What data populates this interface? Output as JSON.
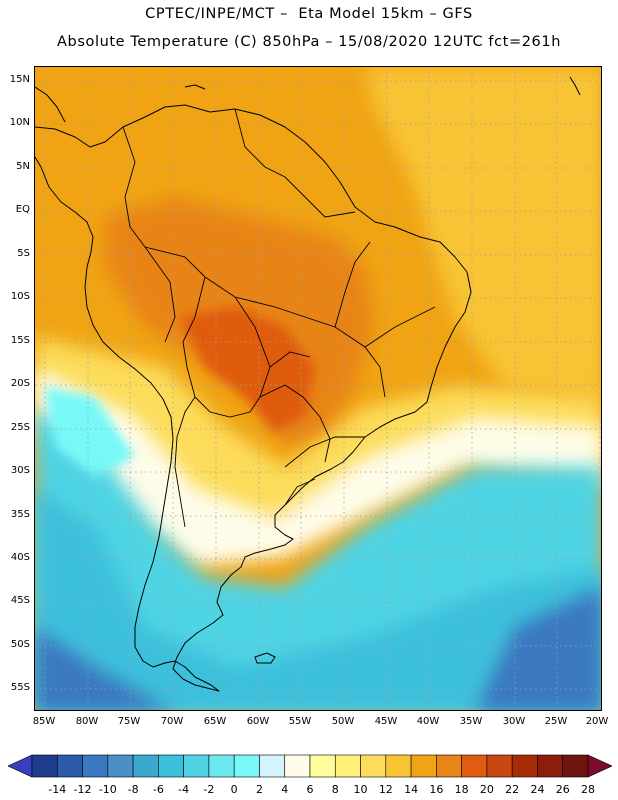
{
  "header": {
    "line1": "CPTEC/INPE/MCT –  Eta Model 15km – GFS",
    "line2": "Absolute Temperature (C) 850hPa – 15/08/2020 12UTC fct=261h"
  },
  "map": {
    "lat_labels": [
      "15N",
      "10N",
      "5N",
      "EQ",
      "5S",
      "10S",
      "15S",
      "20S",
      "25S",
      "30S",
      "35S",
      "40S",
      "45S",
      "50S",
      "55S"
    ],
    "lon_labels": [
      "85W",
      "80W",
      "75W",
      "70W",
      "65W",
      "60W",
      "55W",
      "50W",
      "45W",
      "40W",
      "35W",
      "30W",
      "25W",
      "20W"
    ],
    "grid": true
  },
  "legend": {
    "colors": [
      "#1e3c8c",
      "#2a5aa8",
      "#3a78c0",
      "#4a90c8",
      "#3ca8d0",
      "#3cc0dc",
      "#50d4e4",
      "#6ce8f0",
      "#78f8f8",
      "#d4f4fc",
      "#fefce8",
      "#fffc9c",
      "#fef078",
      "#fcdc5a",
      "#f8c434",
      "#f0a414",
      "#e88418",
      "#e05c10",
      "#c84810",
      "#a82c08",
      "#8c1c0c",
      "#701410"
    ],
    "labels": [
      "-14",
      "-12",
      "-10",
      "-8",
      "-6",
      "-4",
      "-2",
      "0",
      "2",
      "4",
      "6",
      "8",
      "10",
      "12",
      "14",
      "16",
      "18",
      "20",
      "22",
      "24",
      "26",
      "28"
    ],
    "low_arrow_color": "#3a3ec0",
    "high_arrow_color": "#7c0c2c"
  }
}
